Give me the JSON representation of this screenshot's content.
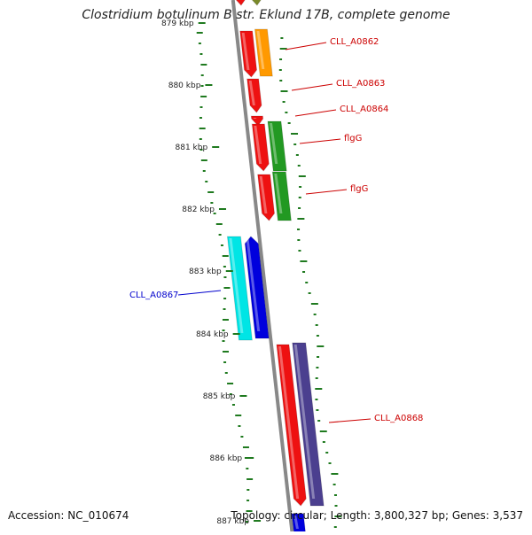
{
  "title": "Clostridium botulinum B str. Eklund 17B, complete genome",
  "accession": "Accession: NC_010674",
  "summary": "Topology: circular; Length: 3,800,327 bp; Genes: 3,537",
  "ticks": [
    "879 kbp",
    "880 kbp",
    "881 kbp",
    "882 kbp",
    "883 kbp",
    "884 kbp",
    "885 kbp",
    "886 kbp",
    "887 kbp"
  ],
  "gene_labels": [
    {
      "text": "CLL_A0862",
      "color": "#cc0000"
    },
    {
      "text": "CLL_A0863",
      "color": "#cc0000"
    },
    {
      "text": "CLL_A0864",
      "color": "#cc0000"
    },
    {
      "text": "flgG",
      "color": "#cc0000"
    },
    {
      "text": "flgG",
      "color": "#cc0000"
    },
    {
      "text": "CLL_A0867",
      "color": "#0000cc"
    },
    {
      "text": "CLL_A0868",
      "color": "#cc0000"
    }
  ],
  "colors": {
    "backbone": "#888888",
    "gc_skew": "#1f7a1f",
    "gene_red": "#ee1111",
    "gene_orange": "#ff9900",
    "gene_green": "#229922",
    "gene_cyan": "#00e5e5",
    "gene_blue": "#0000dd",
    "gene_purple": "#4b3f8f",
    "gene_olive": "#7a8a2a"
  }
}
